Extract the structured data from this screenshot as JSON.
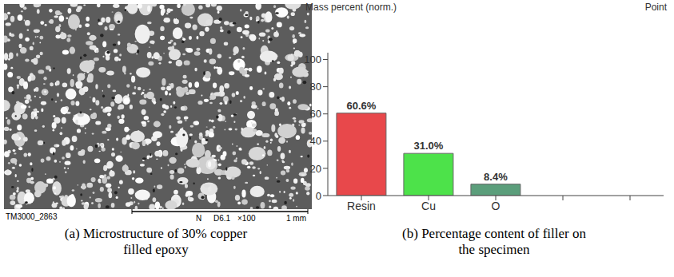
{
  "chart_data": {
    "type": "bar",
    "y_label": "Mass percent (norm.)",
    "annotation": "Point",
    "caption": "(b) Percentage content of filler on the specimen",
    "categories": [
      "Resin",
      "Cu",
      "O",
      null,
      null
    ],
    "values": [
      60.6,
      31.0,
      8.4,
      null,
      null
    ],
    "value_labels": [
      "60.6%",
      "31.0%",
      "8.4%",
      null,
      null
    ],
    "colors": [
      "#e8484b",
      "#4de24a",
      "#5b9e7b",
      null,
      null
    ],
    "ylim": [
      0,
      105
    ],
    "yticks": [
      0,
      20,
      40,
      60,
      80,
      100
    ],
    "grid": false,
    "data_labels": true,
    "tick_labels": true
  },
  "micrograph": {
    "id": "TM3000_2863",
    "detector": "N",
    "working_distance": "D6.1",
    "magnification": "×100",
    "scale_bar": "1 mm",
    "caption": "(a) Microstructure of 30% copper filled epoxy"
  }
}
